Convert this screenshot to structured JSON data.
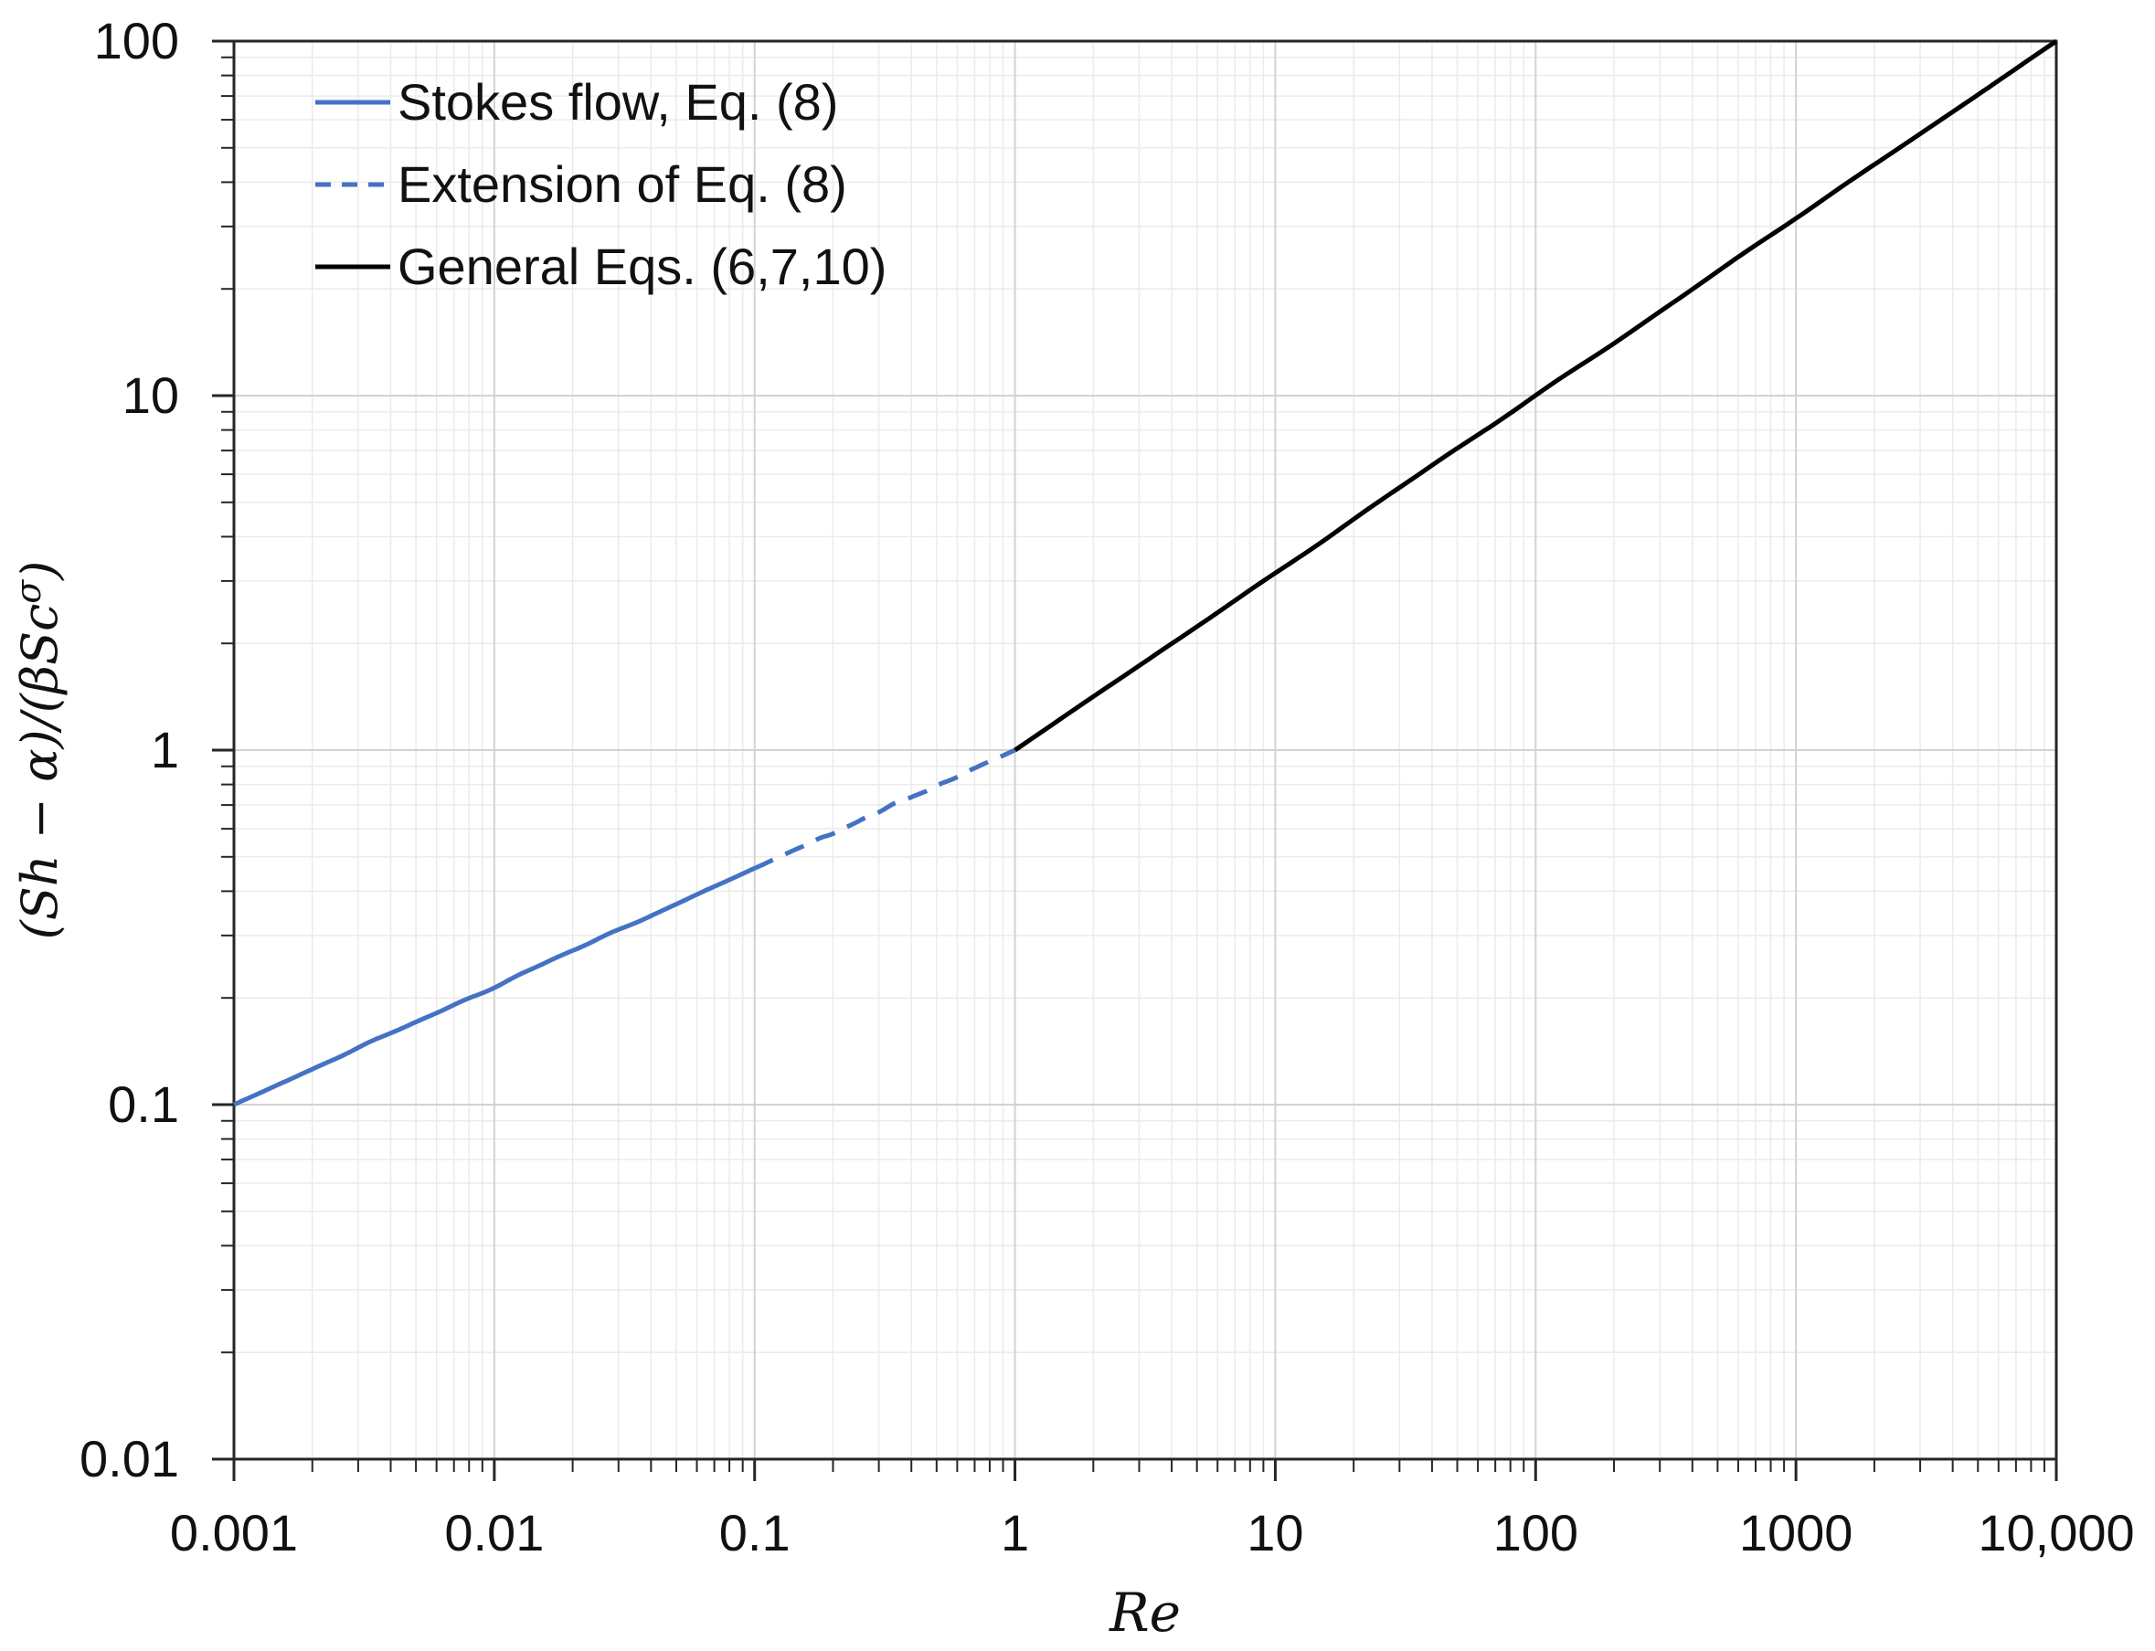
{
  "chart_data": {
    "type": "line",
    "title": "",
    "x_axis": {
      "label": "Re",
      "scale": "log",
      "min": 0.001,
      "max": 10000,
      "tick_values": [
        0.001,
        0.01,
        0.1,
        1,
        10,
        100,
        1000,
        10000
      ],
      "tick_labels": [
        "0.001",
        "0.01",
        "0.1",
        "1",
        "10",
        "100",
        "1000",
        "10,000"
      ]
    },
    "y_axis": {
      "label": "(Sh − α)/(βScσ)",
      "label_parts": {
        "pre": "(Sh − α)/(βSc",
        "sup": "σ",
        "post": ")"
      },
      "scale": "log",
      "min": 0.01,
      "max": 100,
      "tick_values": [
        0.01,
        0.1,
        1,
        10,
        100
      ],
      "tick_labels": [
        "0.01",
        "0.1",
        "1",
        "10",
        "100"
      ]
    },
    "grid": {
      "major": true,
      "minor": true,
      "minor_multiples": [
        2,
        3,
        4,
        5,
        6,
        7,
        8,
        9
      ]
    },
    "legend": {
      "position": "top-left"
    },
    "series": [
      {
        "name": "Stokes flow, Eq. (8)",
        "color": "#4472C4",
        "style": "solid",
        "relation": "y = Re^(1/3)",
        "points": [
          [
            0.001,
            0.1
          ],
          [
            0.01,
            0.2154
          ],
          [
            0.1,
            0.4642
          ]
        ]
      },
      {
        "name": "Extension of Eq. (8)",
        "color": "#4472C4",
        "style": "dashed",
        "relation": "y = Re^(1/3)",
        "points": [
          [
            0.1,
            0.4642
          ],
          [
            1,
            1
          ]
        ]
      },
      {
        "name": "General Eqs. (6,7,10)",
        "color": "#000000",
        "style": "solid",
        "relation": "y = Re^(1/2)",
        "points": [
          [
            1,
            1
          ],
          [
            10,
            3.162
          ],
          [
            100,
            10
          ],
          [
            1000,
            31.62
          ],
          [
            10000,
            100
          ]
        ]
      }
    ]
  },
  "colors": {
    "background": "#ffffff",
    "frame": "#262626",
    "tick": "#262626",
    "grid_major": "#d2d2d2",
    "grid_minor": "#ebebeb",
    "text": "#111111",
    "series_blue": "#4472C4",
    "series_black": "#000000"
  }
}
